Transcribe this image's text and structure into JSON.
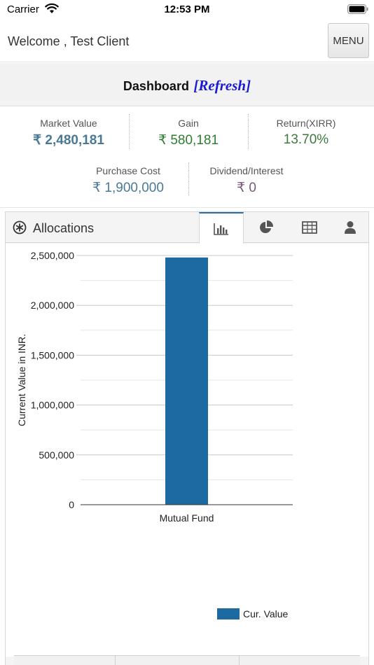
{
  "status_bar": {
    "carrier": "Carrier",
    "time": "12:53 PM"
  },
  "header": {
    "welcome": "Welcome , Test Client",
    "menu_label": "MENU"
  },
  "dashboard": {
    "title": "Dashboard",
    "refresh_label": "[Refresh]"
  },
  "stats": {
    "market_value": {
      "label": "Market Value",
      "value": "₹ 2,480,181"
    },
    "gain": {
      "label": "Gain",
      "value": "₹ 580,181"
    },
    "return": {
      "label": "Return(XIRR)",
      "value": "13.70%"
    },
    "purchase_cost": {
      "label": "Purchase Cost",
      "value": "₹ 1,900,000"
    },
    "dividend": {
      "label": "Dividend/Interest",
      "value": "₹ 0"
    }
  },
  "colors": {
    "market_value": "#4a7a93",
    "gain": "#2f7d32",
    "return": "#3e7a3e",
    "purchase_cost": "#4a7a93",
    "dividend": "#7a5a7a",
    "bar": "#1c6aa1"
  },
  "panel": {
    "title": "Allocations",
    "title_icon": "asterisk-circle-icon",
    "tabs": [
      {
        "icon": "bar-chart-icon",
        "active": true
      },
      {
        "icon": "pie-chart-icon",
        "active": false
      },
      {
        "icon": "table-icon",
        "active": false
      },
      {
        "icon": "user-icon",
        "active": false
      }
    ]
  },
  "chart_data": {
    "type": "bar",
    "categories": [
      "Mutual Fund"
    ],
    "series": [
      {
        "name": "Cur. Value",
        "values": [
          2480181
        ]
      }
    ],
    "ylabel": "Current Value in INR.",
    "xlabel": "",
    "ylim": [
      0,
      2500000
    ],
    "yticks": [
      "0",
      "500,000",
      "1,000,000",
      "1,500,000",
      "2,000,000",
      "2,500,000"
    ],
    "grid": true,
    "legend_position": "bottom-right"
  }
}
